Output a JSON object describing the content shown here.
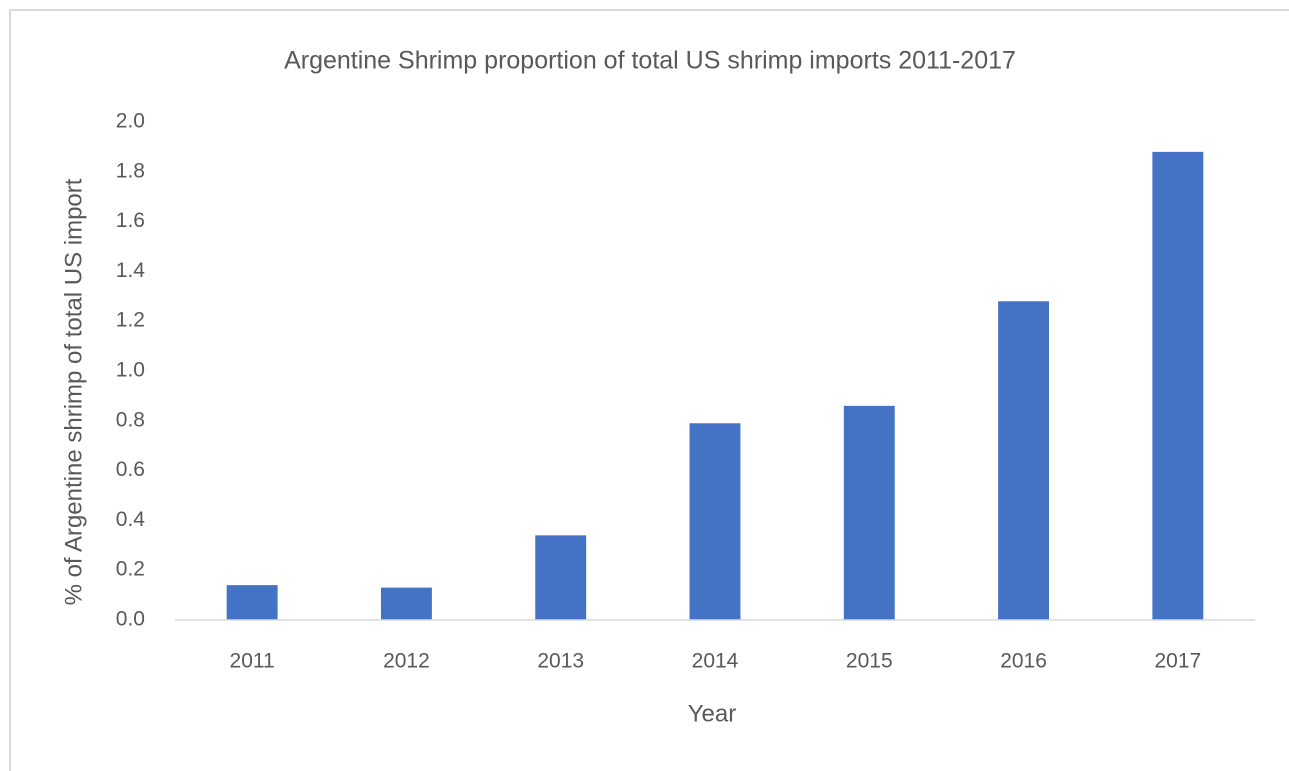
{
  "chart_data": {
    "type": "bar",
    "title": "Argentine Shrimp proportion of total US shrimp imports 2011-2017",
    "x_label": "Year",
    "y_label": "% of Argentine shrimp of total US import",
    "categories": [
      "2011",
      "2012",
      "2013",
      "2014",
      "2015",
      "2016",
      "2017"
    ],
    "values": [
      0.14,
      0.13,
      0.34,
      0.79,
      0.86,
      1.28,
      1.88
    ],
    "color": "#4472c4",
    "ylim": [
      0,
      2
    ],
    "yticks": [
      {
        "value": 0,
        "label": "0.0"
      },
      0.2,
      0.4,
      0.6,
      0.8,
      {
        "value": 1,
        "label": "1.0"
      },
      1.2,
      1.4,
      1.6,
      1.8,
      {
        "value": 2,
        "label": "2.0"
      }
    ],
    "grid": false
  }
}
